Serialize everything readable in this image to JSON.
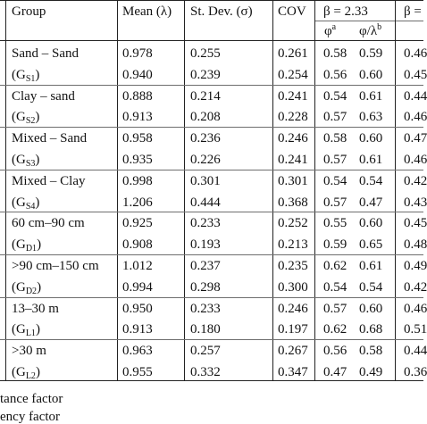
{
  "header": {
    "group": "Group",
    "mean": "Mean (λ)",
    "stdev": "St. Dev. (σ)",
    "cov": "COV",
    "beta1": "β = 2.33",
    "beta2": "β =",
    "phi": "φ",
    "phi_sup": "a",
    "phi_lambda": "φ/λ",
    "phi_lambda_sup": "b"
  },
  "groups": [
    {
      "line1": "Sand – Sand",
      "line2_main": "(G",
      "line2_sub": "S1",
      "line2_close": ")"
    },
    {
      "line1": "Clay – sand",
      "line2_main": "(G",
      "line2_sub": "S2",
      "line2_close": ")"
    },
    {
      "line1": "Mixed – Sand",
      "line2_main": "(G",
      "line2_sub": "S3",
      "line2_close": ")"
    },
    {
      "line1": "Mixed – Clay",
      "line2_main": "(G",
      "line2_sub": "S4",
      "line2_close": ")"
    },
    {
      "line1": "60 cm–90 cm",
      "line2_main": "(G",
      "line2_sub": "D1",
      "line2_close": ")"
    },
    {
      "line1": ">90 cm–150 cm",
      "line2_main": "(G",
      "line2_sub": "D2",
      "line2_close": ")"
    },
    {
      "line1": "13–30 m",
      "line2_main": "(G",
      "line2_sub": "L1",
      "line2_close": ")"
    },
    {
      "line1": ">30 m",
      "line2_main": "(G",
      "line2_sub": "L2",
      "line2_close": ")"
    }
  ],
  "rows": [
    [
      "0.978",
      "0.255",
      "0.261",
      "0.58",
      "0.59",
      "0.46"
    ],
    [
      "0.940",
      "0.239",
      "0.254",
      "0.56",
      "0.60",
      "0.45"
    ],
    [
      "0.888",
      "0.214",
      "0.241",
      "0.54",
      "0.61",
      "0.44"
    ],
    [
      "0.913",
      "0.208",
      "0.228",
      "0.57",
      "0.63",
      "0.46"
    ],
    [
      "0.958",
      "0.236",
      "0.246",
      "0.58",
      "0.60",
      "0.47"
    ],
    [
      "0.935",
      "0.226",
      "0.241",
      "0.57",
      "0.61",
      "0.46"
    ],
    [
      "0.998",
      "0.301",
      "0.301",
      "0.54",
      "0.54",
      "0.42"
    ],
    [
      "1.206",
      "0.444",
      "0.368",
      "0.57",
      "0.47",
      "0.43"
    ],
    [
      "0.925",
      "0.233",
      "0.252",
      "0.55",
      "0.60",
      "0.45"
    ],
    [
      "0.908",
      "0.193",
      "0.213",
      "0.59",
      "0.65",
      "0.48"
    ],
    [
      "1.012",
      "0.237",
      "0.235",
      "0.62",
      "0.61",
      "0.49"
    ],
    [
      "0.994",
      "0.298",
      "0.300",
      "0.54",
      "0.54",
      "0.42"
    ],
    [
      "0.950",
      "0.233",
      "0.246",
      "0.57",
      "0.60",
      "0.46"
    ],
    [
      "0.913",
      "0.180",
      "0.197",
      "0.62",
      "0.68",
      "0.51"
    ],
    [
      "0.963",
      "0.257",
      "0.267",
      "0.56",
      "0.58",
      "0.44"
    ],
    [
      "0.955",
      "0.332",
      "0.347",
      "0.47",
      "0.49",
      "0.36"
    ]
  ],
  "footnotes": [
    "tance factor",
    "ency factor"
  ]
}
